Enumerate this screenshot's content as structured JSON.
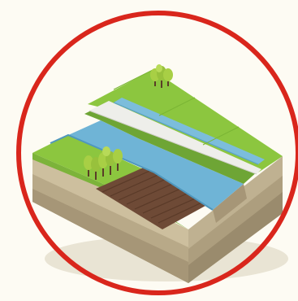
{
  "illustration": {
    "subject": "isometric-landscape-levee-river-field",
    "colors": {
      "background": "#fdfbf3",
      "ring": "#d9261c",
      "grass_light": "#8cc63f",
      "grass_dark": "#6ea535",
      "river": "#6fb4d6",
      "river_edge": "#4f97bd",
      "canal": "#7cbddb",
      "levee_top": "#eeeeea",
      "field": "#6e4a36",
      "field_rows": "#5a3a28",
      "soil_top": "#cdbf9e",
      "soil_mid": "#b7a887",
      "soil_low": "#a39475",
      "tree_leaf": "#a8cf45",
      "tree_trunk": "#5a3d27"
    }
  }
}
